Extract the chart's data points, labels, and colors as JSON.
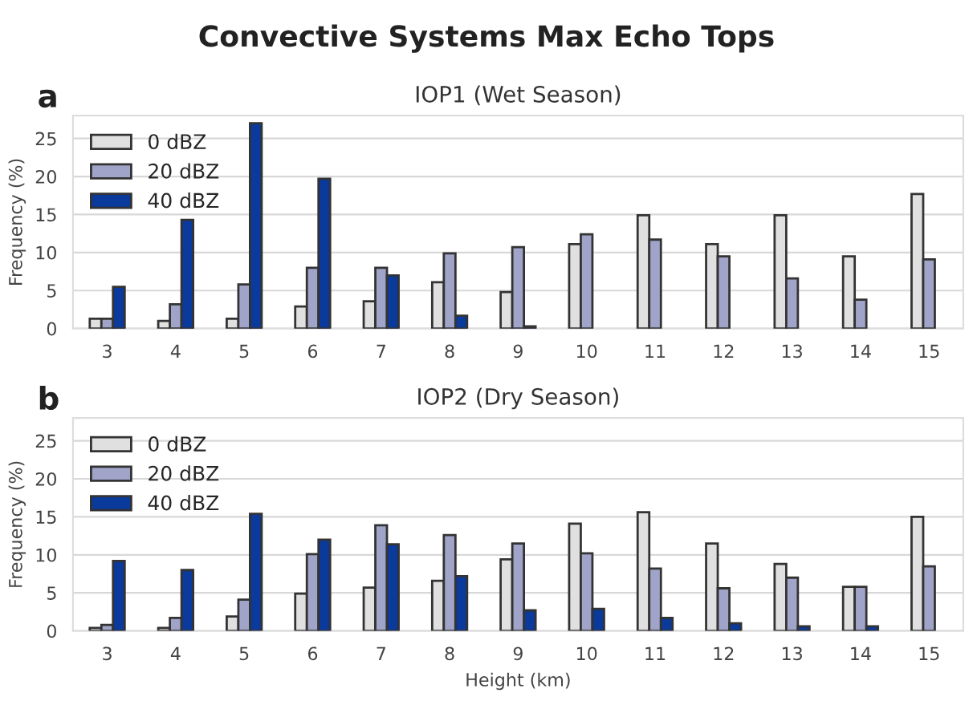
{
  "chart_data": [
    {
      "type": "bar",
      "title": "IOP1 (Wet Season)",
      "ylabel": "Frequency (%)",
      "annotations": [
        "a",
        "Convective Systems Max Echo Tops"
      ],
      "categories": [
        "3",
        "4",
        "5",
        "6",
        "7",
        "8",
        "9",
        "10",
        "11",
        "12",
        "13",
        "14",
        "15"
      ],
      "series": [
        {
          "name": "0 dBZ",
          "color": "#e0e0e0",
          "values": [
            1.3,
            1.0,
            1.3,
            2.9,
            3.6,
            6.1,
            4.8,
            11.1,
            14.9,
            11.1,
            14.9,
            9.5,
            17.7
          ]
        },
        {
          "name": "20 dBZ",
          "color": "#a0a4c8",
          "values": [
            1.3,
            3.2,
            5.8,
            8.0,
            8.0,
            9.9,
            10.7,
            12.4,
            11.7,
            9.5,
            6.6,
            3.8,
            9.1
          ]
        },
        {
          "name": "40 dBZ",
          "color": "#0a3a9c",
          "values": [
            5.5,
            14.3,
            27.0,
            19.7,
            7.0,
            1.7,
            0.3,
            null,
            null,
            null,
            null,
            null,
            null
          ]
        }
      ],
      "ylim": [
        0,
        28
      ],
      "yticks": [
        0,
        5,
        10,
        15,
        20,
        25
      ],
      "grid": "y",
      "legend": "top left"
    },
    {
      "type": "bar",
      "title": "IOP2 (Dry Season)",
      "ylabel": "Frequency (%)",
      "xlabel": "Height (km)",
      "annotations": [
        "b"
      ],
      "categories": [
        "3",
        "4",
        "5",
        "6",
        "7",
        "8",
        "9",
        "10",
        "11",
        "12",
        "13",
        "14",
        "15"
      ],
      "series": [
        {
          "name": "0 dBZ",
          "color": "#e0e0e0",
          "values": [
            0.4,
            0.4,
            1.9,
            4.9,
            5.7,
            6.6,
            9.4,
            14.1,
            15.6,
            11.5,
            8.8,
            5.8,
            15.0
          ]
        },
        {
          "name": "20 dBZ",
          "color": "#a0a4c8",
          "values": [
            0.8,
            1.7,
            4.1,
            10.1,
            13.9,
            12.6,
            11.5,
            10.2,
            8.2,
            5.6,
            7.0,
            5.8,
            8.5
          ]
        },
        {
          "name": "40 dBZ",
          "color": "#0a3a9c",
          "values": [
            9.2,
            8.0,
            15.4,
            12.0,
            11.4,
            7.2,
            2.7,
            2.9,
            1.7,
            1.0,
            0.6,
            0.6,
            null
          ]
        }
      ],
      "ylim": [
        0,
        28
      ],
      "yticks": [
        0,
        5,
        10,
        15,
        20,
        25
      ],
      "grid": "y",
      "legend": "top left"
    }
  ]
}
